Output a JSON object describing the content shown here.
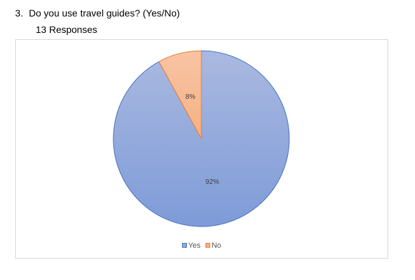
{
  "question": {
    "number": "3.",
    "text": "Do you use travel guides? (Yes/No)",
    "responses": "13 Responses"
  },
  "chart_data": {
    "type": "pie",
    "categories": [
      "Yes",
      "No"
    ],
    "values": [
      92,
      8
    ],
    "data_labels": [
      "92%",
      "8%"
    ],
    "colors": [
      "#8faadc",
      "#f4b183"
    ],
    "border_colors": [
      "#4472c4",
      "#ed7d31"
    ],
    "start_angle_deg": 0,
    "direction": "clockwise",
    "legend": {
      "position": "bottom",
      "entries": [
        "Yes",
        "No"
      ]
    }
  }
}
